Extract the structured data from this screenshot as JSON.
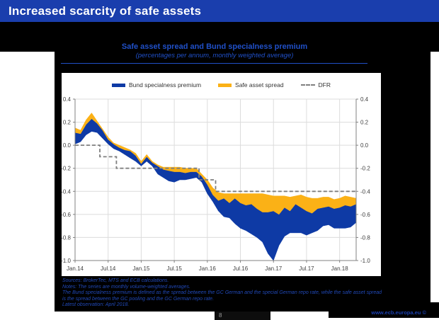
{
  "slide": {
    "title": "Increased scarcity of safe assets",
    "page_number": "8",
    "footer_link": "www.ecb.europa.eu ©"
  },
  "colors": {
    "header_bg": "#1a3ead",
    "title_text": "#2050c8",
    "notes_text": "#2149b8",
    "footer_link_text": "#1a3fae",
    "bund_blue": "#0e3aa5",
    "safe_orange": "#fbb116",
    "dfr_gray": "#7f7f7f",
    "grid": "#dcdcdc",
    "axis": "#808080",
    "tick_text": "#404040"
  },
  "chart": {
    "title": "Safe asset spread and Bund specialness premium",
    "subtitle": "(percentages per annum, monthly weighted average)",
    "legend": [
      {
        "label": "Bund specialness premium",
        "style": "area",
        "color": "#0e3aa5"
      },
      {
        "label": "Safe asset spread",
        "style": "area",
        "color": "#fbb116"
      },
      {
        "label": "DFR",
        "style": "dashed-line",
        "color": "#7f7f7f"
      }
    ],
    "notes": {
      "sources": "Sources: BrokerTec, MTS and ECB calculations.",
      "series_note": "Notes: The series are monthly volume-weighted averages.",
      "definition": "The Bund specialness premium is defined as the spread between the GC German and the special German repo rate, while the safe asset spread is the spread between the GC pooling and the GC German repo rate.",
      "latest": "Latest observation: April 2018."
    }
  },
  "chart_data": {
    "type": "area",
    "title": "Safe asset spread and Bund specialness premium",
    "subtitle": "(percentages per annum, monthly weighted average)",
    "ylim": [
      -1.0,
      0.4
    ],
    "yticks": [
      0.4,
      0.2,
      0.0,
      -0.2,
      -0.4,
      -0.6,
      -0.8,
      -1.0
    ],
    "xtick_indices": [
      0,
      6,
      12,
      18,
      24,
      30,
      36,
      42,
      48
    ],
    "months": [
      "Jan.14",
      "Feb.14",
      "Mar.14",
      "Apr.14",
      "May.14",
      "Jun.14",
      "Jul.14",
      "Aug.14",
      "Sep.14",
      "Oct.14",
      "Nov.14",
      "Dec.14",
      "Jan.15",
      "Feb.15",
      "Mar.15",
      "Apr.15",
      "May.15",
      "Jun.15",
      "Jul.15",
      "Aug.15",
      "Sep.15",
      "Oct.15",
      "Nov.15",
      "Dec.15",
      "Jan.16",
      "Feb.16",
      "Mar.16",
      "Apr.16",
      "May.16",
      "Jun.16",
      "Jul.16",
      "Aug.16",
      "Sep.16",
      "Oct.16",
      "Nov.16",
      "Dec.16",
      "Jan.17",
      "Feb.17",
      "Mar.17",
      "Apr.17",
      "May.17",
      "Jun.17",
      "Jul.17",
      "Aug.17",
      "Sep.17",
      "Oct.17",
      "Nov.17",
      "Dec.17",
      "Jan.18",
      "Feb.18",
      "Mar.18",
      "Apr.18"
    ],
    "bands": [
      {
        "name": "Safe asset spread",
        "color": "#fbb116",
        "upper": [
          0.15,
          0.13,
          0.22,
          0.28,
          0.21,
          0.14,
          0.07,
          0.02,
          0.0,
          -0.02,
          -0.04,
          -0.07,
          -0.14,
          -0.08,
          -0.14,
          -0.17,
          -0.19,
          -0.19,
          -0.19,
          -0.19,
          -0.2,
          -0.2,
          -0.2,
          -0.25,
          -0.3,
          -0.37,
          -0.41,
          -0.42,
          -0.42,
          -0.42,
          -0.42,
          -0.42,
          -0.42,
          -0.42,
          -0.42,
          -0.43,
          -0.44,
          -0.44,
          -0.44,
          -0.45,
          -0.44,
          -0.43,
          -0.45,
          -0.46,
          -0.46,
          -0.45,
          -0.45,
          -0.47,
          -0.46,
          -0.44,
          -0.45,
          -0.46
        ],
        "lower": [
          0.11,
          0.1,
          0.18,
          0.23,
          0.19,
          0.13,
          0.05,
          0.01,
          -0.02,
          -0.04,
          -0.05,
          -0.09,
          -0.16,
          -0.1,
          -0.15,
          -0.18,
          -0.21,
          -0.22,
          -0.23,
          -0.23,
          -0.24,
          -0.23,
          -0.23,
          -0.27,
          -0.34,
          -0.43,
          -0.48,
          -0.46,
          -0.5,
          -0.46,
          -0.5,
          -0.52,
          -0.51,
          -0.55,
          -0.58,
          -0.58,
          -0.57,
          -0.6,
          -0.54,
          -0.57,
          -0.51,
          -0.54,
          -0.57,
          -0.59,
          -0.55,
          -0.54,
          -0.53,
          -0.55,
          -0.54,
          -0.52,
          -0.53,
          -0.51
        ]
      },
      {
        "name": "Bund specialness premium",
        "color": "#0e3aa5",
        "upper": [
          0.11,
          0.1,
          0.18,
          0.23,
          0.19,
          0.13,
          0.05,
          0.01,
          -0.02,
          -0.04,
          -0.05,
          -0.09,
          -0.16,
          -0.1,
          -0.15,
          -0.18,
          -0.21,
          -0.22,
          -0.23,
          -0.23,
          -0.24,
          -0.23,
          -0.23,
          -0.27,
          -0.34,
          -0.43,
          -0.48,
          -0.46,
          -0.5,
          -0.46,
          -0.5,
          -0.52,
          -0.51,
          -0.55,
          -0.58,
          -0.58,
          -0.57,
          -0.6,
          -0.54,
          -0.57,
          -0.51,
          -0.54,
          -0.57,
          -0.59,
          -0.55,
          -0.54,
          -0.53,
          -0.55,
          -0.54,
          -0.52,
          -0.53,
          -0.51
        ],
        "lower": [
          0.01,
          0.03,
          0.09,
          0.12,
          0.11,
          0.06,
          0.01,
          -0.03,
          -0.05,
          -0.08,
          -0.11,
          -0.14,
          -0.18,
          -0.14,
          -0.18,
          -0.25,
          -0.28,
          -0.31,
          -0.32,
          -0.3,
          -0.3,
          -0.29,
          -0.28,
          -0.32,
          -0.42,
          -0.49,
          -0.57,
          -0.62,
          -0.63,
          -0.68,
          -0.72,
          -0.74,
          -0.77,
          -0.8,
          -0.84,
          -0.94,
          -1.0,
          -0.87,
          -0.79,
          -0.76,
          -0.76,
          -0.76,
          -0.78,
          -0.76,
          -0.74,
          -0.7,
          -0.69,
          -0.72,
          -0.72,
          -0.72,
          -0.71,
          -0.67
        ]
      }
    ],
    "dfr_line": {
      "name": "DFR",
      "color": "#7f7f7f",
      "values": [
        0.0,
        0.0,
        0.0,
        0.0,
        0.0,
        -0.1,
        -0.1,
        -0.1,
        -0.2,
        -0.2,
        -0.2,
        -0.2,
        -0.2,
        -0.2,
        -0.2,
        -0.2,
        -0.2,
        -0.2,
        -0.2,
        -0.2,
        -0.2,
        -0.2,
        -0.2,
        -0.3,
        -0.3,
        -0.3,
        -0.4,
        -0.4,
        -0.4,
        -0.4,
        -0.4,
        -0.4,
        -0.4,
        -0.4,
        -0.4,
        -0.4,
        -0.4,
        -0.4,
        -0.4,
        -0.4,
        -0.4,
        -0.4,
        -0.4,
        -0.4,
        -0.4,
        -0.4,
        -0.4,
        -0.4,
        -0.4,
        -0.4,
        -0.4,
        -0.4
      ]
    },
    "legend_position": "top",
    "grid": true
  }
}
